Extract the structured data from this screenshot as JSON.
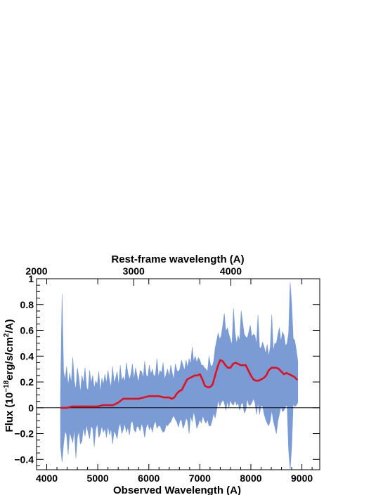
{
  "chart_data": {
    "type": "line",
    "xlabel": "Observed Wavelength (A)",
    "top_xlabel": "Rest-frame wavelength (A)",
    "ylabel": "Flux (10^-18erg/s/cm^2/A)",
    "ylabel_parts": {
      "prefix": "Flux (10",
      "exp1": "−18",
      "mid": "erg/s/cm",
      "exp2": "2",
      "suffix": "/A)"
    },
    "xlim": [
      3800,
      9350
    ],
    "ylim": [
      -0.48,
      1.0
    ],
    "x_ticks": [
      "4000",
      "5000",
      "6000",
      "7000",
      "8000",
      "9000"
    ],
    "y_ticks": [
      "−0.4",
      "−0.2",
      "0",
      "0.2",
      "0.4",
      "0.6",
      "0.8",
      "1"
    ],
    "top_axis": {
      "ticks": [
        "2000",
        "3000",
        "4000"
      ],
      "tick_values_obs": [
        3800,
        5704,
        7608
      ]
    },
    "grid": false,
    "zero_line": true,
    "colors": {
      "spectrum": "#7b9bd4",
      "model": "#e0101e",
      "axis": "#000000"
    },
    "series": [
      {
        "style": "noisy-band",
        "x": [
          4270,
          4300,
          4330,
          4360,
          4390,
          4420,
          4450,
          4480,
          4510,
          4540,
          4570,
          4600,
          4630,
          4660,
          4690,
          4720,
          4750,
          4780,
          4810,
          4840,
          4870,
          4900,
          4930,
          4960,
          4990,
          5020,
          5050,
          5080,
          5110,
          5140,
          5170,
          5200,
          5230,
          5260,
          5290,
          5320,
          5350,
          5380,
          5410,
          5440,
          5470,
          5500,
          5530,
          5560,
          5590,
          5620,
          5650,
          5680,
          5710,
          5740,
          5770,
          5800,
          5830,
          5860,
          5890,
          5920,
          5950,
          5980,
          6010,
          6040,
          6070,
          6100,
          6130,
          6160,
          6190,
          6220,
          6250,
          6280,
          6310,
          6340,
          6370,
          6400,
          6430,
          6460,
          6490,
          6520,
          6550,
          6580,
          6610,
          6640,
          6670,
          6700,
          6730,
          6760,
          6790,
          6820,
          6850,
          6880,
          6910,
          6940,
          6970,
          7000,
          7030,
          7060,
          7090,
          7120,
          7150,
          7180,
          7210,
          7240,
          7270,
          7300,
          7330,
          7360,
          7390,
          7420,
          7450,
          7480,
          7510,
          7540,
          7570,
          7600,
          7630,
          7660,
          7690,
          7720,
          7750,
          7780,
          7810,
          7840,
          7870,
          7900,
          7930,
          7960,
          7990,
          8020,
          8050,
          8080,
          8110,
          8140,
          8170,
          8200,
          8230,
          8260,
          8290,
          8320,
          8350,
          8380,
          8410,
          8440,
          8470,
          8500,
          8530,
          8560,
          8590,
          8620,
          8650,
          8680,
          8710,
          8740,
          8770,
          8800,
          8830,
          8860,
          8890,
          8920
        ],
        "high": [
          0.12,
          0.88,
          0.28,
          0.22,
          0.32,
          0.17,
          0.27,
          0.19,
          0.39,
          0.21,
          0.14,
          0.31,
          0.23,
          0.12,
          0.25,
          0.19,
          0.31,
          0.16,
          0.13,
          0.29,
          0.19,
          0.25,
          0.15,
          0.21,
          0.18,
          0.28,
          0.12,
          0.23,
          0.18,
          0.26,
          0.19,
          0.29,
          0.21,
          0.16,
          0.32,
          0.19,
          0.23,
          0.28,
          0.17,
          0.33,
          0.21,
          0.24,
          0.2,
          0.35,
          0.27,
          0.22,
          0.26,
          0.34,
          0.22,
          0.31,
          0.25,
          0.2,
          0.29,
          0.28,
          0.23,
          0.36,
          0.25,
          0.24,
          0.33,
          0.26,
          0.3,
          0.24,
          0.26,
          0.38,
          0.24,
          0.29,
          0.27,
          0.35,
          0.22,
          0.26,
          0.3,
          0.24,
          0.33,
          0.27,
          0.22,
          0.34,
          0.29,
          0.28,
          0.3,
          0.37,
          0.33,
          0.29,
          0.37,
          0.31,
          0.38,
          0.34,
          0.47,
          0.36,
          0.4,
          0.35,
          0.39,
          0.37,
          0.33,
          0.33,
          0.31,
          0.3,
          0.28,
          0.4,
          0.33,
          0.32,
          0.36,
          0.46,
          0.52,
          0.58,
          0.53,
          0.56,
          0.64,
          0.73,
          0.59,
          0.62,
          0.57,
          0.53,
          0.49,
          0.77,
          0.58,
          0.5,
          0.56,
          0.52,
          0.75,
          0.66,
          0.57,
          0.55,
          0.54,
          0.59,
          0.64,
          0.55,
          0.57,
          0.56,
          0.49,
          0.72,
          0.47,
          0.46,
          0.51,
          0.47,
          0.42,
          0.49,
          0.4,
          0.47,
          0.72,
          0.44,
          0.5,
          0.5,
          0.57,
          0.62,
          0.51,
          0.59,
          0.56,
          0.48,
          0.5,
          0.58,
          0.97,
          0.8,
          0.54,
          0.52,
          0.45,
          0.36
        ],
        "low": [
          -0.3,
          -0.42,
          -0.28,
          -0.18,
          -0.21,
          -0.36,
          -0.19,
          -0.23,
          -0.27,
          -0.16,
          -0.39,
          -0.23,
          -0.18,
          -0.28,
          -0.26,
          -0.15,
          -0.22,
          -0.13,
          -0.19,
          -0.24,
          -0.14,
          -0.16,
          -0.3,
          -0.17,
          -0.12,
          -0.23,
          -0.2,
          -0.14,
          -0.19,
          -0.16,
          -0.23,
          -0.14,
          -0.21,
          -0.16,
          -0.28,
          -0.18,
          -0.2,
          -0.24,
          -0.15,
          -0.12,
          -0.2,
          -0.17,
          -0.12,
          -0.19,
          -0.15,
          -0.21,
          -0.12,
          -0.1,
          -0.17,
          -0.19,
          -0.14,
          -0.15,
          -0.18,
          -0.12,
          -0.16,
          -0.23,
          -0.15,
          -0.12,
          -0.17,
          -0.14,
          -0.19,
          -0.13,
          -0.1,
          -0.16,
          -0.14,
          -0.14,
          -0.17,
          -0.19,
          -0.18,
          -0.13,
          -0.14,
          -0.12,
          -0.11,
          -0.08,
          -0.06,
          -0.09,
          -0.11,
          -0.15,
          -0.1,
          -0.09,
          -0.16,
          -0.13,
          -0.08,
          -0.1,
          -0.2,
          -0.06,
          -0.11,
          -0.03,
          -0.08,
          -0.16,
          -0.13,
          -0.09,
          -0.12,
          -0.06,
          -0.1,
          -0.12,
          -0.09,
          -0.14,
          -0.14,
          -0.1,
          -0.04,
          -0.08,
          -0.02,
          0.06,
          0.01,
          0.04,
          0.06,
          0.04,
          -0.02,
          0.05,
          0.0,
          0.06,
          0.03,
          0.02,
          0.06,
          0.02,
          0.04,
          -0.02,
          0.03,
          0.04,
          -0.04,
          -0.02,
          0.07,
          0.02,
          0.02,
          0.04,
          0.07,
          0.04,
          -0.05,
          0.04,
          -0.05,
          0.02,
          0.01,
          -0.05,
          -0.09,
          -0.12,
          -0.14,
          -0.1,
          -0.02,
          -0.1,
          -0.15,
          -0.2,
          -0.1,
          -0.05,
          0.01,
          -0.03,
          -0.02,
          0.01,
          0.02,
          -0.33,
          -0.48,
          -0.3,
          0.03,
          0.01,
          0.02,
          0.04
        ]
      },
      {
        "style": "smooth-model",
        "x": [
          4280,
          4400,
          4500,
          4600,
          4700,
          4800,
          4900,
          5000,
          5100,
          5200,
          5300,
          5400,
          5500,
          5600,
          5700,
          5800,
          5900,
          6000,
          6100,
          6200,
          6300,
          6400,
          6450,
          6500,
          6550,
          6600,
          6650,
          6700,
          6750,
          6800,
          6850,
          6900,
          6950,
          7000,
          7050,
          7100,
          7150,
          7200,
          7250,
          7300,
          7350,
          7400,
          7450,
          7500,
          7550,
          7600,
          7650,
          7700,
          7750,
          7800,
          7850,
          7900,
          7950,
          8000,
          8050,
          8100,
          8150,
          8200,
          8250,
          8300,
          8350,
          8400,
          8450,
          8500,
          8550,
          8600,
          8650,
          8700,
          8750,
          8800,
          8850,
          8900
        ],
        "y": [
          0.0,
          0.0,
          0.01,
          0.01,
          0.01,
          0.01,
          0.01,
          0.01,
          0.02,
          0.02,
          0.02,
          0.04,
          0.07,
          0.07,
          0.07,
          0.07,
          0.08,
          0.09,
          0.09,
          0.09,
          0.08,
          0.08,
          0.07,
          0.08,
          0.11,
          0.13,
          0.14,
          0.18,
          0.22,
          0.23,
          0.24,
          0.25,
          0.25,
          0.26,
          0.22,
          0.17,
          0.16,
          0.16,
          0.18,
          0.25,
          0.32,
          0.37,
          0.36,
          0.33,
          0.31,
          0.31,
          0.34,
          0.35,
          0.34,
          0.33,
          0.33,
          0.33,
          0.29,
          0.25,
          0.22,
          0.21,
          0.21,
          0.22,
          0.23,
          0.25,
          0.29,
          0.31,
          0.31,
          0.31,
          0.3,
          0.28,
          0.26,
          0.27,
          0.26,
          0.25,
          0.24,
          0.22
        ]
      }
    ]
  }
}
